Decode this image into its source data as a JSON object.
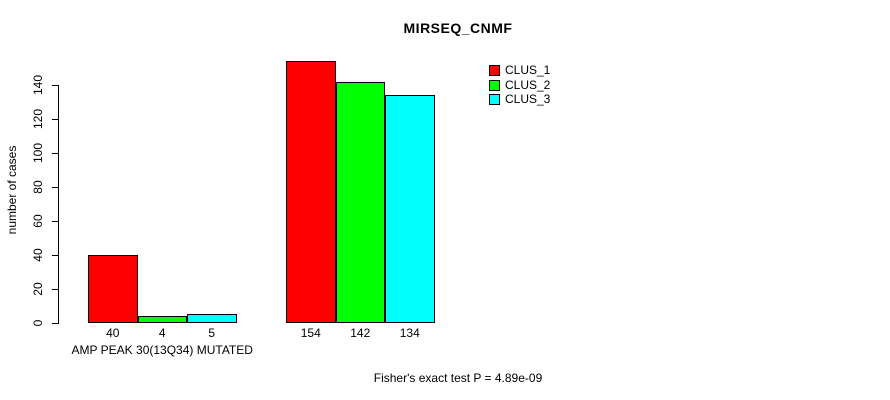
{
  "chart_data": {
    "type": "bar",
    "title": "MIRSEQ_CNMF",
    "ylabel": "number of cases",
    "xlabel": "",
    "categories": [
      "AMP PEAK 30(13Q34) MUTATED",
      ""
    ],
    "series": [
      {
        "name": "CLUS_1",
        "color": "#ff0000",
        "values": [
          40,
          154
        ]
      },
      {
        "name": "CLUS_2",
        "color": "#00ff00",
        "values": [
          4,
          142
        ]
      },
      {
        "name": "CLUS_3",
        "color": "#00ffff",
        "values": [
          5,
          134
        ]
      }
    ],
    "bar_value_labels": true,
    "yticks": [
      0,
      20,
      40,
      60,
      80,
      100,
      120,
      140
    ],
    "ylim": [
      0,
      158
    ],
    "grid": false,
    "legend_position": "top-right",
    "annotation": "Fisher's exact test P = 4.89e-09"
  },
  "colors": {
    "background": "#ffffff",
    "axis": "#000000",
    "bar_outline": "#000000"
  }
}
